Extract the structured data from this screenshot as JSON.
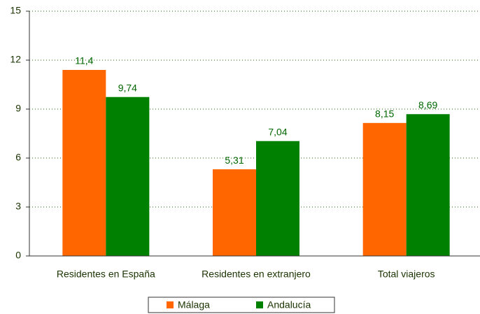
{
  "chart_data": {
    "type": "bar",
    "categories": [
      "Residentes en España",
      "Residentes en extranjero",
      "Total viajeros"
    ],
    "series": [
      {
        "name": "Málaga",
        "color": "#ff6600",
        "values": [
          11.4,
          5.31,
          8.15
        ],
        "value_labels": [
          "11,4",
          "5,31",
          "8,15"
        ]
      },
      {
        "name": "Andalucía",
        "color": "#008000",
        "values": [
          9.74,
          7.04,
          8.69
        ],
        "value_labels": [
          "9,74",
          "7,04",
          "8,69"
        ]
      }
    ],
    "ylim": [
      0,
      15
    ],
    "yticks": [
      0,
      3,
      6,
      9,
      12,
      15
    ],
    "grid": true,
    "legend": "bottom"
  }
}
